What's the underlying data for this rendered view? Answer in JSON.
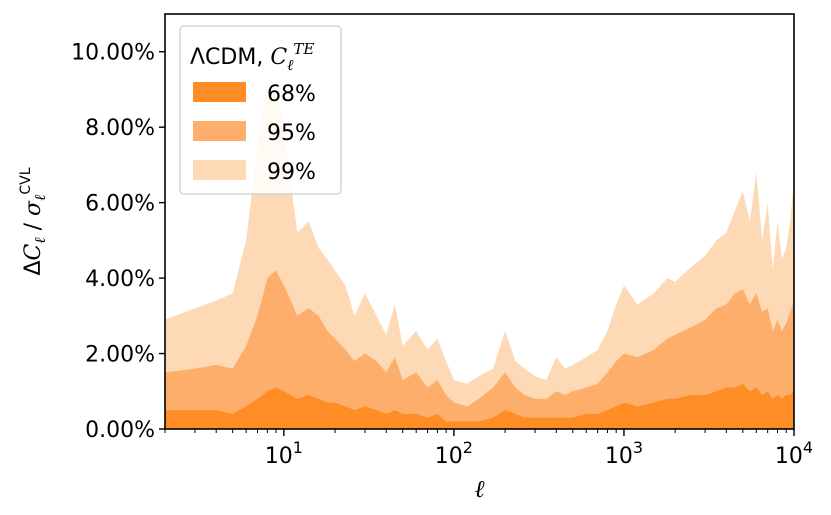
{
  "chart_data": {
    "type": "area",
    "title": "",
    "xlabel": "ℓ",
    "ylabel": "ΔCℓ / σℓ^CVL",
    "xscale": "log",
    "xlim": [
      2,
      10000
    ],
    "ylim": [
      0,
      0.11
    ],
    "grid": false,
    "x_ticks": [
      {
        "value": 10,
        "base": "10",
        "exp": "1"
      },
      {
        "value": 100,
        "base": "10",
        "exp": "2"
      },
      {
        "value": 1000,
        "base": "10",
        "exp": "3"
      },
      {
        "value": 10000,
        "base": "10",
        "exp": "4"
      }
    ],
    "y_ticks": [
      {
        "value": 0.0,
        "label": "0.00%"
      },
      {
        "value": 0.02,
        "label": "2.00%"
      },
      {
        "value": 0.04,
        "label": "4.00%"
      },
      {
        "value": 0.06,
        "label": "6.00%"
      },
      {
        "value": 0.08,
        "label": "8.00%"
      },
      {
        "value": 0.1,
        "label": "10.00%"
      }
    ],
    "legend": {
      "placement": "top-left",
      "title_main": "ΛCDM, ",
      "title_sym": "C",
      "title_sub": "ℓ",
      "title_sup": "TE"
    },
    "series": [
      {
        "name": "99%",
        "color": "#fdd9b5",
        "x": [
          2,
          3,
          4,
          5,
          6,
          7,
          8,
          9,
          10,
          11,
          12,
          14,
          16,
          18,
          20,
          23,
          26,
          30,
          35,
          40,
          45,
          50,
          60,
          70,
          80,
          90,
          100,
          120,
          140,
          170,
          200,
          230,
          260,
          300,
          350,
          400,
          450,
          500,
          600,
          700,
          800,
          900,
          1000,
          1200,
          1500,
          1800,
          2000,
          2500,
          3000,
          3500,
          4000,
          4500,
          5000,
          5500,
          6000,
          6500,
          7000,
          7500,
          8000,
          8500,
          9000,
          9500,
          10000
        ],
        "values": [
          0.029,
          0.032,
          0.034,
          0.036,
          0.05,
          0.075,
          0.092,
          0.09,
          0.08,
          0.065,
          0.052,
          0.055,
          0.048,
          0.045,
          0.042,
          0.038,
          0.03,
          0.036,
          0.03,
          0.025,
          0.033,
          0.022,
          0.026,
          0.021,
          0.024,
          0.018,
          0.013,
          0.012,
          0.014,
          0.016,
          0.026,
          0.018,
          0.016,
          0.014,
          0.013,
          0.019,
          0.016,
          0.017,
          0.019,
          0.021,
          0.026,
          0.033,
          0.038,
          0.033,
          0.036,
          0.04,
          0.039,
          0.043,
          0.046,
          0.05,
          0.052,
          0.058,
          0.063,
          0.055,
          0.068,
          0.05,
          0.06,
          0.042,
          0.055,
          0.045,
          0.048,
          0.055,
          0.066
        ]
      },
      {
        "name": "95%",
        "color": "#fdae6b",
        "x": [
          2,
          3,
          4,
          5,
          6,
          7,
          8,
          9,
          10,
          11,
          12,
          14,
          16,
          18,
          20,
          23,
          26,
          30,
          35,
          40,
          45,
          50,
          60,
          70,
          80,
          90,
          100,
          120,
          140,
          170,
          200,
          230,
          260,
          300,
          350,
          400,
          450,
          500,
          600,
          700,
          800,
          900,
          1000,
          1200,
          1500,
          1800,
          2000,
          2500,
          3000,
          3500,
          4000,
          4500,
          5000,
          5500,
          6000,
          6500,
          7000,
          7500,
          8000,
          8500,
          9000,
          9500,
          10000
        ],
        "values": [
          0.015,
          0.016,
          0.017,
          0.016,
          0.022,
          0.03,
          0.04,
          0.042,
          0.038,
          0.034,
          0.03,
          0.032,
          0.03,
          0.026,
          0.024,
          0.021,
          0.018,
          0.02,
          0.018,
          0.015,
          0.019,
          0.013,
          0.015,
          0.011,
          0.013,
          0.009,
          0.007,
          0.006,
          0.008,
          0.011,
          0.015,
          0.011,
          0.009,
          0.008,
          0.008,
          0.01,
          0.009,
          0.01,
          0.011,
          0.012,
          0.015,
          0.018,
          0.02,
          0.019,
          0.021,
          0.024,
          0.025,
          0.027,
          0.029,
          0.032,
          0.033,
          0.036,
          0.037,
          0.033,
          0.036,
          0.031,
          0.032,
          0.026,
          0.029,
          0.026,
          0.028,
          0.031,
          0.034
        ]
      },
      {
        "name": "68%",
        "color": "#fd8d24",
        "x": [
          2,
          3,
          4,
          5,
          6,
          7,
          8,
          9,
          10,
          11,
          12,
          14,
          16,
          18,
          20,
          23,
          26,
          30,
          35,
          40,
          45,
          50,
          60,
          70,
          80,
          90,
          100,
          120,
          140,
          170,
          200,
          230,
          260,
          300,
          350,
          400,
          450,
          500,
          600,
          700,
          800,
          900,
          1000,
          1200,
          1500,
          1800,
          2000,
          2500,
          3000,
          3500,
          4000,
          4500,
          5000,
          5500,
          6000,
          6500,
          7000,
          7500,
          8000,
          8500,
          9000,
          9500,
          10000
        ],
        "values": [
          0.005,
          0.005,
          0.005,
          0.004,
          0.006,
          0.008,
          0.01,
          0.011,
          0.01,
          0.009,
          0.008,
          0.009,
          0.008,
          0.007,
          0.007,
          0.006,
          0.005,
          0.006,
          0.005,
          0.004,
          0.005,
          0.004,
          0.004,
          0.003,
          0.004,
          0.002,
          0.002,
          0.002,
          0.002,
          0.003,
          0.005,
          0.004,
          0.003,
          0.003,
          0.003,
          0.003,
          0.003,
          0.003,
          0.004,
          0.004,
          0.005,
          0.006,
          0.007,
          0.006,
          0.007,
          0.008,
          0.008,
          0.009,
          0.009,
          0.01,
          0.011,
          0.011,
          0.012,
          0.01,
          0.011,
          0.009,
          0.01,
          0.008,
          0.009,
          0.008,
          0.009,
          0.009,
          0.01
        ]
      }
    ],
    "legend_order": [
      "68%",
      "95%",
      "99%"
    ]
  }
}
